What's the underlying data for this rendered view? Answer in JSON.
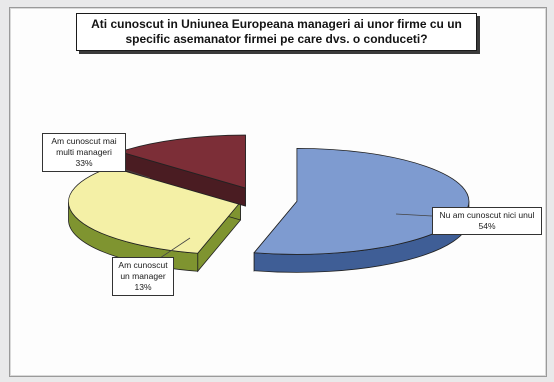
{
  "chart_data": {
    "type": "pie",
    "title": "Ati cunoscut in Uniunea Europeana manageri ai unor firme cu un specific asemanator firmei pe care dvs. o conduceti?",
    "categories": [
      "Nu am cunoscut nici unul",
      "Am cunoscut mai multi manageri",
      "Am cunoscut un manager"
    ],
    "values": [
      54,
      33,
      13
    ],
    "unit": "%",
    "labels": [
      {
        "text": "Nu am cunoscut nici unul",
        "pct": "54%"
      },
      {
        "text": "Am cunoscut mai multi manageri",
        "pct": "33%"
      },
      {
        "text": "Am cunoscut un manager",
        "pct": "13%"
      }
    ],
    "colors": [
      "#7e9bd0",
      "#f4f0a6",
      "#7c2e37"
    ],
    "side_colors": [
      "#3f5e96",
      "#7f9430",
      "#4a1c22"
    ],
    "exploded": true,
    "three_d": true
  }
}
